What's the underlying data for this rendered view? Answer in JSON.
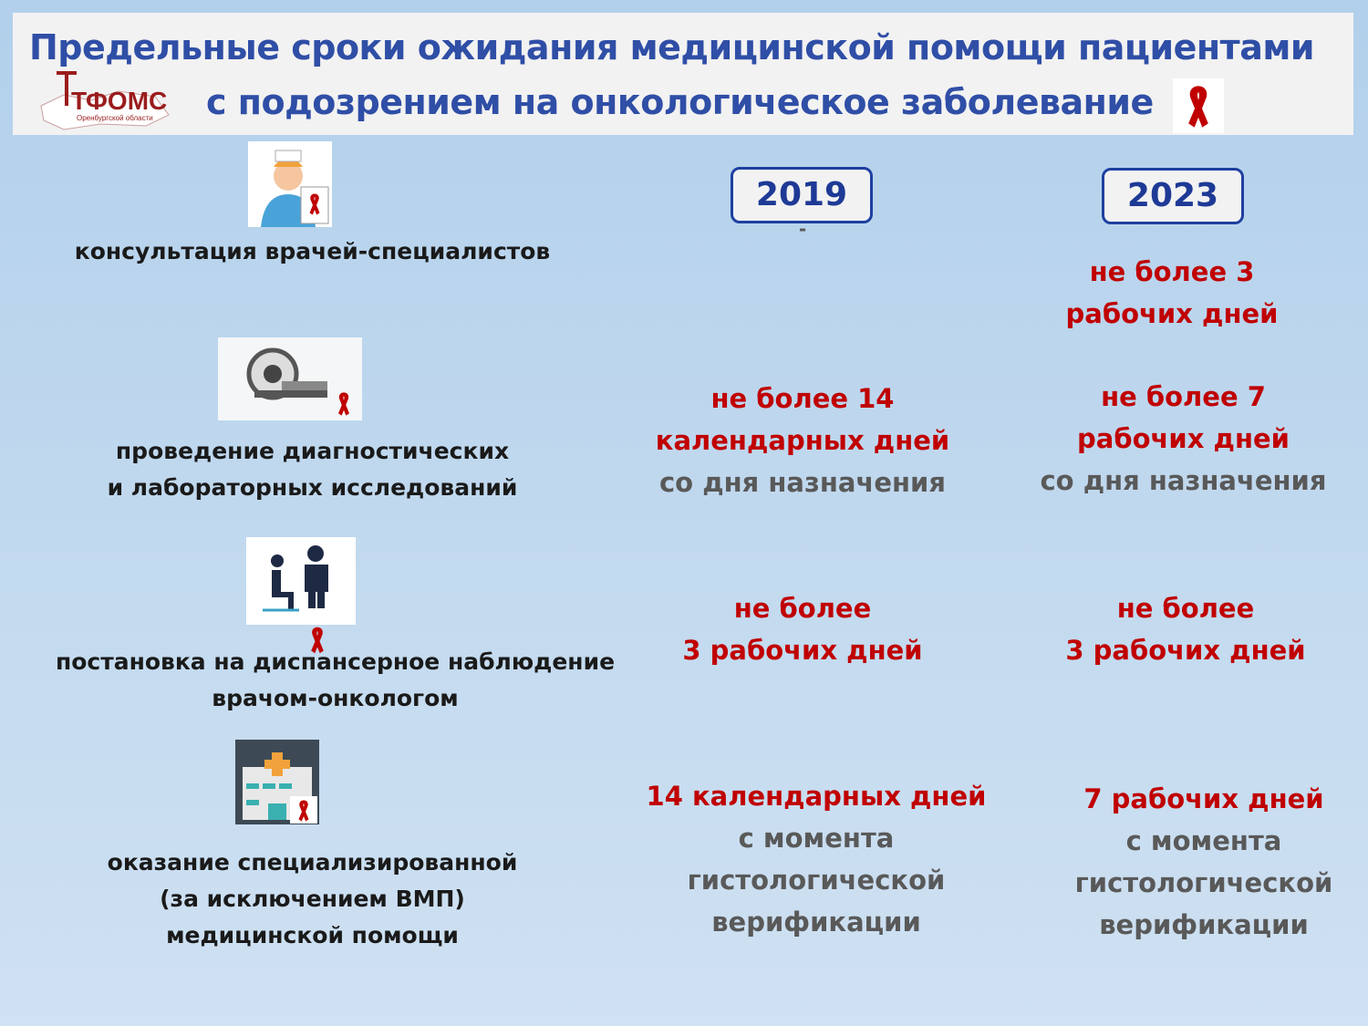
{
  "title": {
    "line1": "Предельные сроки ожидания медицинской помощи пациентами",
    "line2": "с подозрением на онкологическое заболевание"
  },
  "logo": {
    "text": "ТФОМС",
    "subtext": "Оренбургской области"
  },
  "colors": {
    "title": "#2f4ea6",
    "accent_red": "#c00000",
    "gray": "#595959",
    "year_border": "#1e40a0"
  },
  "years": [
    "2019",
    "2023"
  ],
  "rows": [
    {
      "icon": "doctor-icon",
      "label": [
        "консультация  врачей-специалистов"
      ],
      "y2019": {
        "red": [
          "-"
        ],
        "gray": []
      },
      "y2023": {
        "red": [
          "не более 3",
          "рабочих дней"
        ],
        "gray": []
      }
    },
    {
      "icon": "mri-scanner-icon",
      "label": [
        "проведение диагностических",
        "и лабораторных  исследований"
      ],
      "y2019": {
        "red": [
          "не более 14",
          "календарных дней"
        ],
        "gray": [
          "со дня назначения"
        ]
      },
      "y2023": {
        "red": [
          "не более 7",
          "рабочих дней"
        ],
        "gray": [
          "со дня назначения"
        ]
      }
    },
    {
      "icon": "patient-doctor-icon",
      "label": [
        "постановка  на диспансерное  наблюдение",
        "врачом-онкологом"
      ],
      "y2019": {
        "red": [
          "не более",
          "3 рабочих дней"
        ],
        "gray": []
      },
      "y2023": {
        "red": [
          "не более",
          "3 рабочих дней"
        ],
        "gray": []
      }
    },
    {
      "icon": "hospital-icon",
      "label": [
        "оказание  специализированной",
        "(за исключением ВМП)",
        "медицинской помощи"
      ],
      "y2019": {
        "red": [
          "14 календарных дней"
        ],
        "gray": [
          "с момента",
          "гистологической",
          "верификации"
        ]
      },
      "y2023": {
        "red": [
          "7 рабочих дней"
        ],
        "gray": [
          "с момента",
          "гистологической",
          "верификации"
        ]
      }
    }
  ]
}
